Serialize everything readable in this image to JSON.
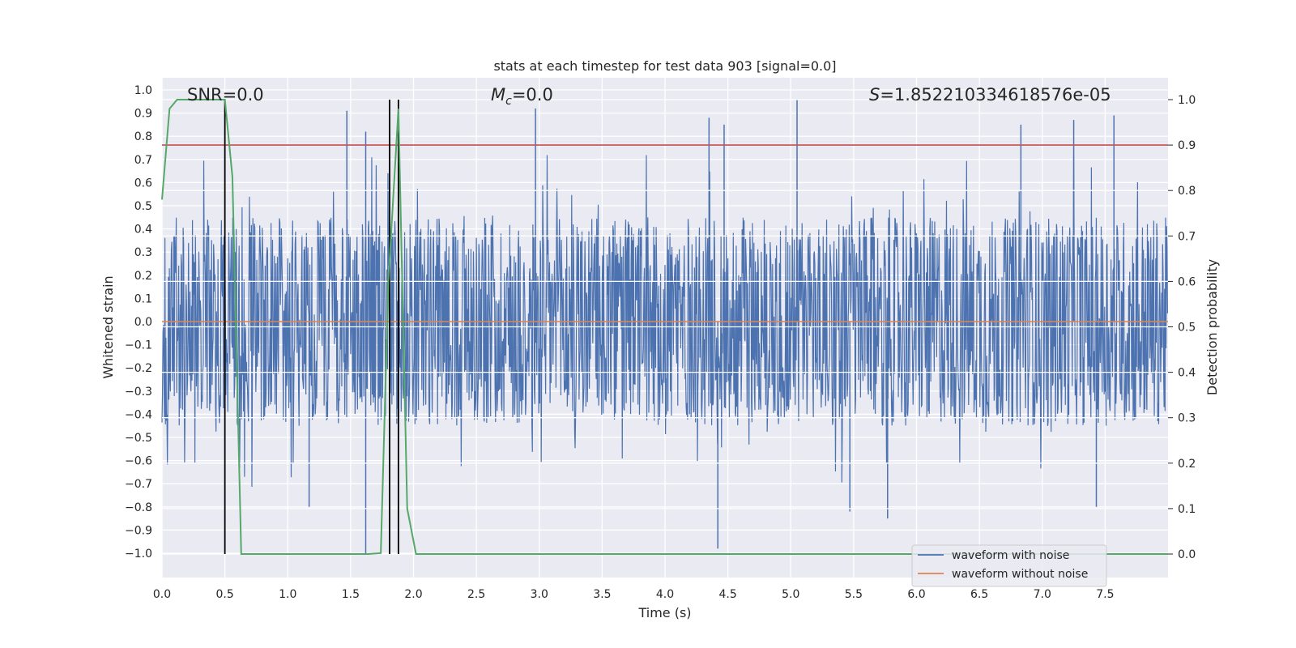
{
  "chart_data": {
    "type": "line",
    "title": "stats at each timestep for test data 903 [signal=0.0]",
    "xlabel": "Time (s)",
    "ylabel_left": "Whitened strain",
    "ylabel_right": "Detection probability",
    "xlim": [
      0.0,
      8.0
    ],
    "ylim_left": [
      -1.09,
      1.06
    ],
    "ylim_right": [
      -0.05,
      1.03
    ],
    "x_ticks": [
      "0.0",
      "0.5",
      "1.0",
      "1.5",
      "2.0",
      "2.5",
      "3.0",
      "3.5",
      "4.0",
      "4.5",
      "5.0",
      "5.5",
      "6.0",
      "6.5",
      "7.0",
      "7.5"
    ],
    "y_left_ticks": [
      "1.0",
      "0.9",
      "0.8",
      "0.7",
      "0.6",
      "0.5",
      "0.4",
      "0.3",
      "0.2",
      "0.1",
      "0.0",
      "−0.1",
      "−0.2",
      "−0.3",
      "−0.4",
      "−0.5",
      "−0.6",
      "−0.7",
      "−0.8",
      "−0.9",
      "−1.0"
    ],
    "y_right_ticks": [
      "1.0",
      "0.9",
      "0.8",
      "0.7",
      "0.6",
      "0.5",
      "0.4",
      "0.3",
      "0.2",
      "0.1",
      "0.0"
    ],
    "grid": true,
    "annotations": {
      "snr": "SNR=0.0",
      "mc_symbol": "M",
      "mc_subscript": "c",
      "mc_value": "=0.0",
      "s_symbol": "S",
      "s_value": "=1.852210334618576e-05"
    },
    "noise_waveform": {
      "name": "waveform with noise",
      "color": "#4c72b0",
      "samples": 2048,
      "typical_envelope": [
        -0.45,
        0.45
      ],
      "notable_peaks": [
        {
          "t": 1.47,
          "v": 0.91
        },
        {
          "t": 1.62,
          "v": 0.82
        },
        {
          "t": 2.97,
          "v": 0.92
        },
        {
          "t": 5.05,
          "v": 0.96
        },
        {
          "t": 4.35,
          "v": 0.88
        },
        {
          "t": 4.47,
          "v": 0.85
        },
        {
          "t": 7.57,
          "v": 0.89
        },
        {
          "t": 7.25,
          "v": 0.87
        },
        {
          "t": 6.83,
          "v": 0.85
        },
        {
          "t": 1.62,
          "v": -1.0
        },
        {
          "t": 4.42,
          "v": -0.98
        },
        {
          "t": 5.77,
          "v": -0.85
        },
        {
          "t": 5.47,
          "v": -0.82
        },
        {
          "t": 7.43,
          "v": -0.8
        },
        {
          "t": 1.17,
          "v": -0.8
        }
      ]
    },
    "clean_waveform": {
      "name": "waveform without noise",
      "color": "#dd8452",
      "value": 0.0
    },
    "detection_probability": {
      "color": "#55a868",
      "t": [
        0.0,
        0.06,
        0.12,
        0.5,
        0.56,
        0.63,
        1.4,
        1.64,
        1.74,
        1.8,
        1.88,
        1.95,
        2.02,
        8.0
      ],
      "p": [
        0.78,
        0.98,
        1.0,
        1.0,
        0.83,
        0.0,
        0.0,
        0.0,
        0.002,
        0.6,
        0.98,
        0.1,
        0.0,
        0.0
      ]
    },
    "threshold": {
      "color": "#c44e52",
      "value": 0.9
    },
    "detection_markers": {
      "color": "#000000",
      "t": [
        0.5,
        1.81,
        1.88
      ],
      "p_top": 1.0
    },
    "legend": {
      "location": "lower right",
      "entries": [
        {
          "label": "waveform with noise",
          "color": "#4c72b0"
        },
        {
          "label": "waveform without noise",
          "color": "#dd8452"
        }
      ]
    },
    "colors": {
      "axes_background": "#eaeaf2",
      "grid": "#ffffff",
      "text": "#262626"
    }
  }
}
